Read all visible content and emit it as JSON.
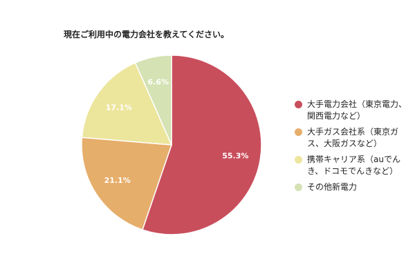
{
  "chart_data": {
    "type": "pie",
    "title": "現在ご利用中の電力会社を教えてください。",
    "slices": [
      {
        "label": "大手電力会社（東京電力、関西電力など）",
        "value": 55.3,
        "value_label": "55.3%",
        "color": "#c94e5c"
      },
      {
        "label": "大手ガス会社系（東京ガス、大阪ガスなど）",
        "value": 21.1,
        "value_label": "21.1%",
        "color": "#e6ae6b"
      },
      {
        "label": "携帯キャリア系（auでんき、ドコモでんきなど）",
        "value": 17.1,
        "value_label": "17.1%",
        "color": "#ece59c"
      },
      {
        "label": "その他新電力",
        "value": 6.6,
        "value_label": "6.6%",
        "color": "#d4e2b4"
      }
    ],
    "legend_position": "right",
    "legend": [
      "大手電力会社（東京電力、\n関西電力など）",
      "大手ガス会社系（東京ガ\nス、大阪ガスなど）",
      "携帯キャリア系（auでん\nき、ドコモでんきなど）",
      "その他新電力"
    ]
  }
}
